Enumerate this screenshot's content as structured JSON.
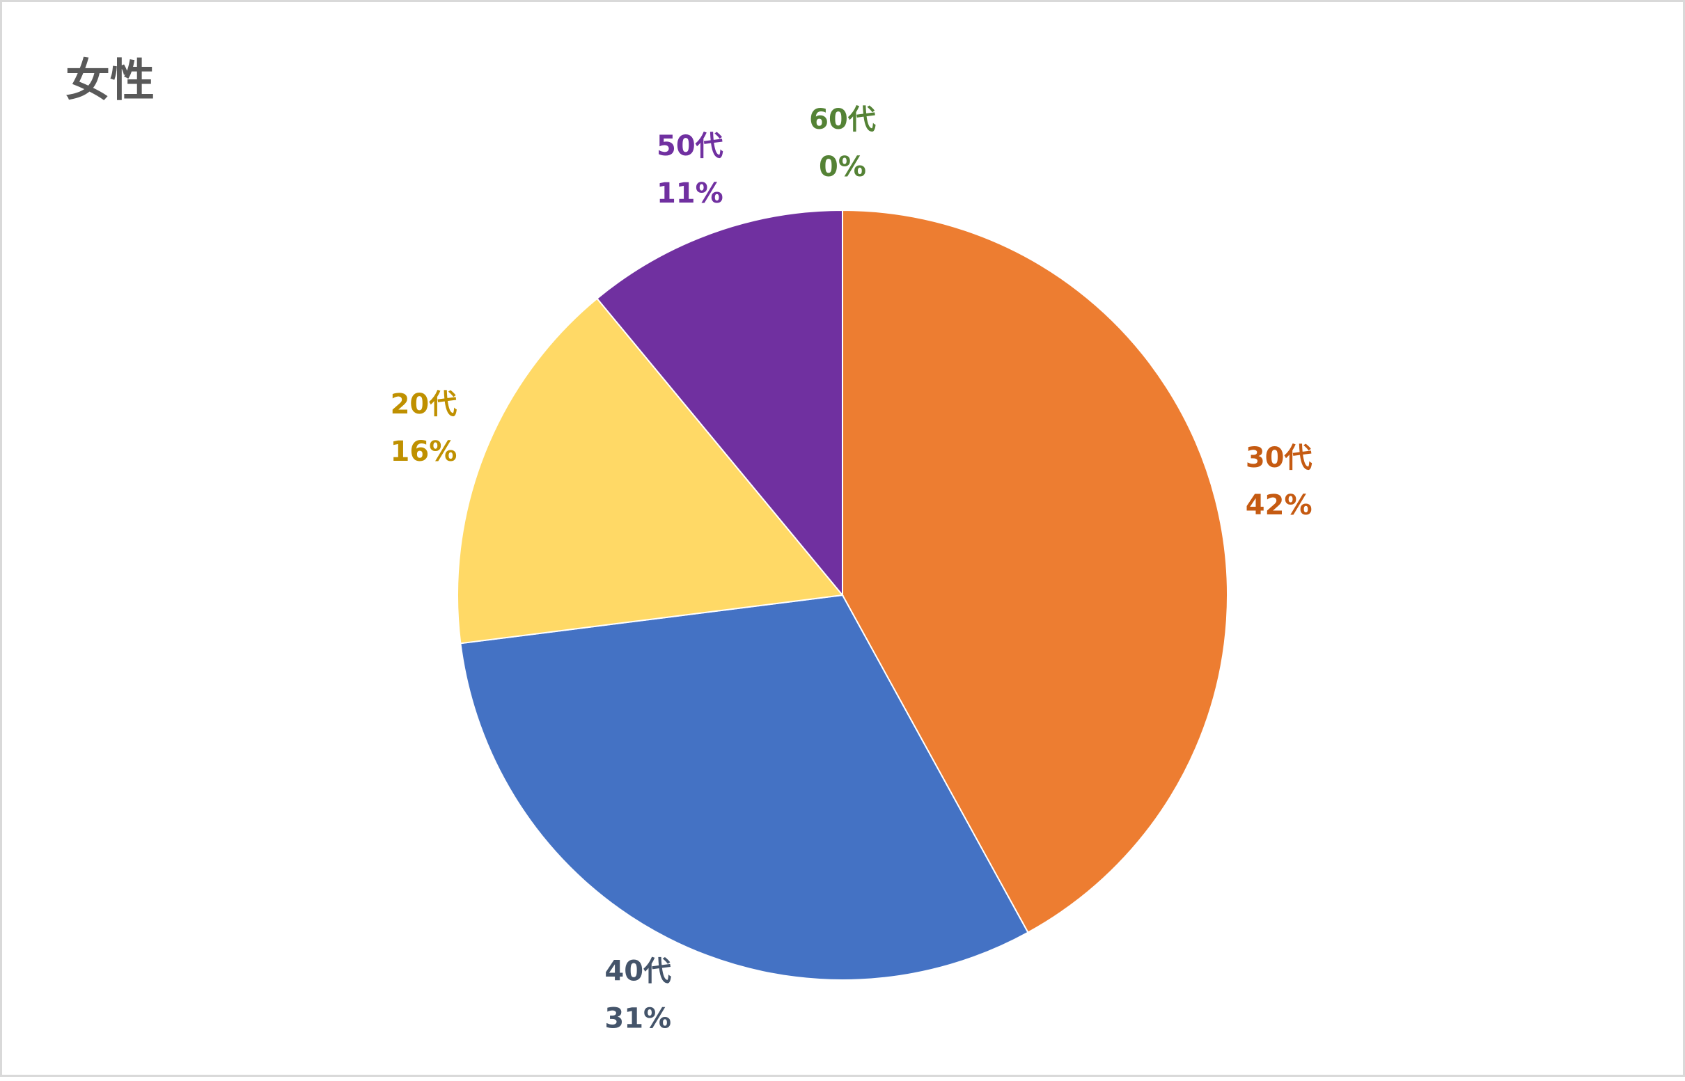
{
  "chart_data": {
    "type": "pie",
    "title": "女性",
    "categories": [
      "30代",
      "40代",
      "20代",
      "50代",
      "60代"
    ],
    "values": [
      42,
      31,
      16,
      11,
      0
    ],
    "value_labels": [
      "42%",
      "31%",
      "16%",
      "11%",
      "0%"
    ],
    "colors": [
      "#ED7D31",
      "#4472C4",
      "#FFD966",
      "#7030A0",
      "#70AD47"
    ],
    "label_colors": [
      "#C55A11",
      "#44546A",
      "#BF9000",
      "#7030A0",
      "#548235"
    ]
  }
}
